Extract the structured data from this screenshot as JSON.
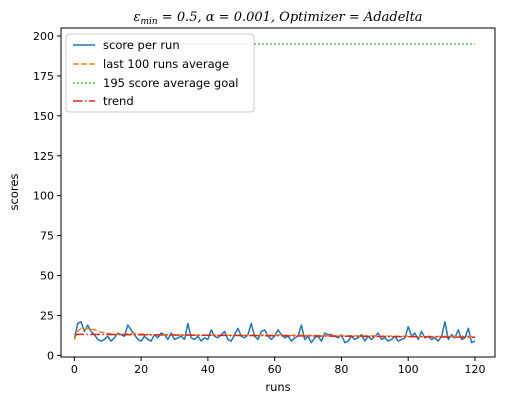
{
  "chart_data": {
    "type": "line",
    "title": "ε_min = 0.5, α = 0.001, Optimizer = Adadelta",
    "title_parts": {
      "epsilon": "ε",
      "epsilon_sub": "min",
      "rest": " = 0.5, α = 0.001, Optimizer = Adadelta"
    },
    "xlabel": "runs",
    "ylabel": "scores",
    "xlim": [
      -4,
      126
    ],
    "ylim": [
      -1,
      205
    ],
    "xticks": [
      0,
      20,
      40,
      60,
      80,
      100,
      120
    ],
    "yticks": [
      0,
      25,
      50,
      75,
      100,
      125,
      150,
      175,
      200
    ],
    "grid": false,
    "legend_position": "top-left",
    "series": [
      {
        "name": "score per run",
        "color": "#1f77b4",
        "style": "solid",
        "x_start": 0,
        "x_step": 1,
        "values": [
          10,
          20,
          21,
          15,
          19,
          15,
          13,
          10,
          9,
          10,
          12,
          9,
          11,
          14,
          13,
          12,
          19,
          16,
          13,
          10,
          9,
          12,
          10,
          9,
          13,
          11,
          14,
          13,
          10,
          14,
          10,
          11,
          12,
          10,
          20,
          11,
          10,
          12,
          9,
          11,
          10,
          16,
          12,
          11,
          13,
          15,
          10,
          9,
          13,
          17,
          12,
          11,
          13,
          20,
          12,
          10,
          15,
          16,
          12,
          10,
          12,
          16,
          13,
          11,
          12,
          9,
          11,
          12,
          19,
          10,
          12,
          8,
          11,
          12,
          9,
          14,
          13,
          13,
          12,
          11,
          13,
          8,
          9,
          12,
          10,
          11,
          13,
          9,
          12,
          10,
          12,
          14,
          10,
          11,
          9,
          10,
          12,
          9,
          10,
          11,
          18,
          12,
          14,
          10,
          15,
          11,
          12,
          10,
          11,
          9,
          12,
          21,
          10,
          13,
          11,
          16,
          10,
          11,
          17,
          8,
          9
        ]
      },
      {
        "name": "last 100 runs average",
        "color": "#ff7f0e",
        "style": "dashed",
        "x_start": 0,
        "x_step": 1,
        "values": [
          10,
          15,
          17,
          16.3,
          16.8,
          16.5,
          16,
          15.3,
          14.6,
          14.1,
          13.9,
          13.5,
          13.3,
          13.3,
          13.3,
          13.2,
          13.5,
          13.7,
          13.7,
          13.5,
          13.3,
          13.3,
          13.2,
          13,
          13,
          12.9,
          13,
          13,
          12.9,
          12.9,
          12.8,
          12.8,
          12.8,
          12.7,
          12.9,
          12.9,
          12.8,
          12.8,
          12.7,
          12.7,
          12.6,
          12.7,
          12.7,
          12.6,
          12.6,
          12.7,
          12.6,
          12.5,
          12.6,
          12.6,
          12.6,
          12.6,
          12.6,
          12.7,
          12.7,
          12.6,
          12.7,
          12.7,
          12.7,
          12.6,
          12.6,
          12.7,
          12.7,
          12.6,
          12.6,
          12.6,
          12.6,
          12.5,
          12.6,
          12.6,
          12.6,
          12.5,
          12.5,
          12.5,
          12.4,
          12.4,
          12.4,
          12.4,
          12.4,
          12.4,
          12.4,
          12.3,
          12.3,
          12.3,
          12.3,
          12.2,
          12.2,
          12.2,
          12.2,
          12.2,
          12.2,
          12.2,
          12.1,
          12.1,
          12.1,
          12.1,
          12.1,
          12,
          12,
          12,
          12.1,
          12,
          11.9,
          11.9,
          11.8,
          11.8,
          11.8,
          11.8,
          11.8,
          11.8,
          11.8,
          11.9,
          11.9,
          11.9,
          11.9,
          11.9,
          11.9,
          11.9,
          11.9,
          11.8,
          11.8
        ]
      },
      {
        "name": "195 score average goal",
        "color": "#2ca02c",
        "style": "dotted",
        "x": [
          0,
          120
        ],
        "values": [
          195,
          195
        ]
      },
      {
        "name": "trend",
        "color": "#d62728",
        "style": "dashdot",
        "x": [
          0,
          120
        ],
        "values": [
          13.2,
          11.4
        ]
      }
    ]
  }
}
